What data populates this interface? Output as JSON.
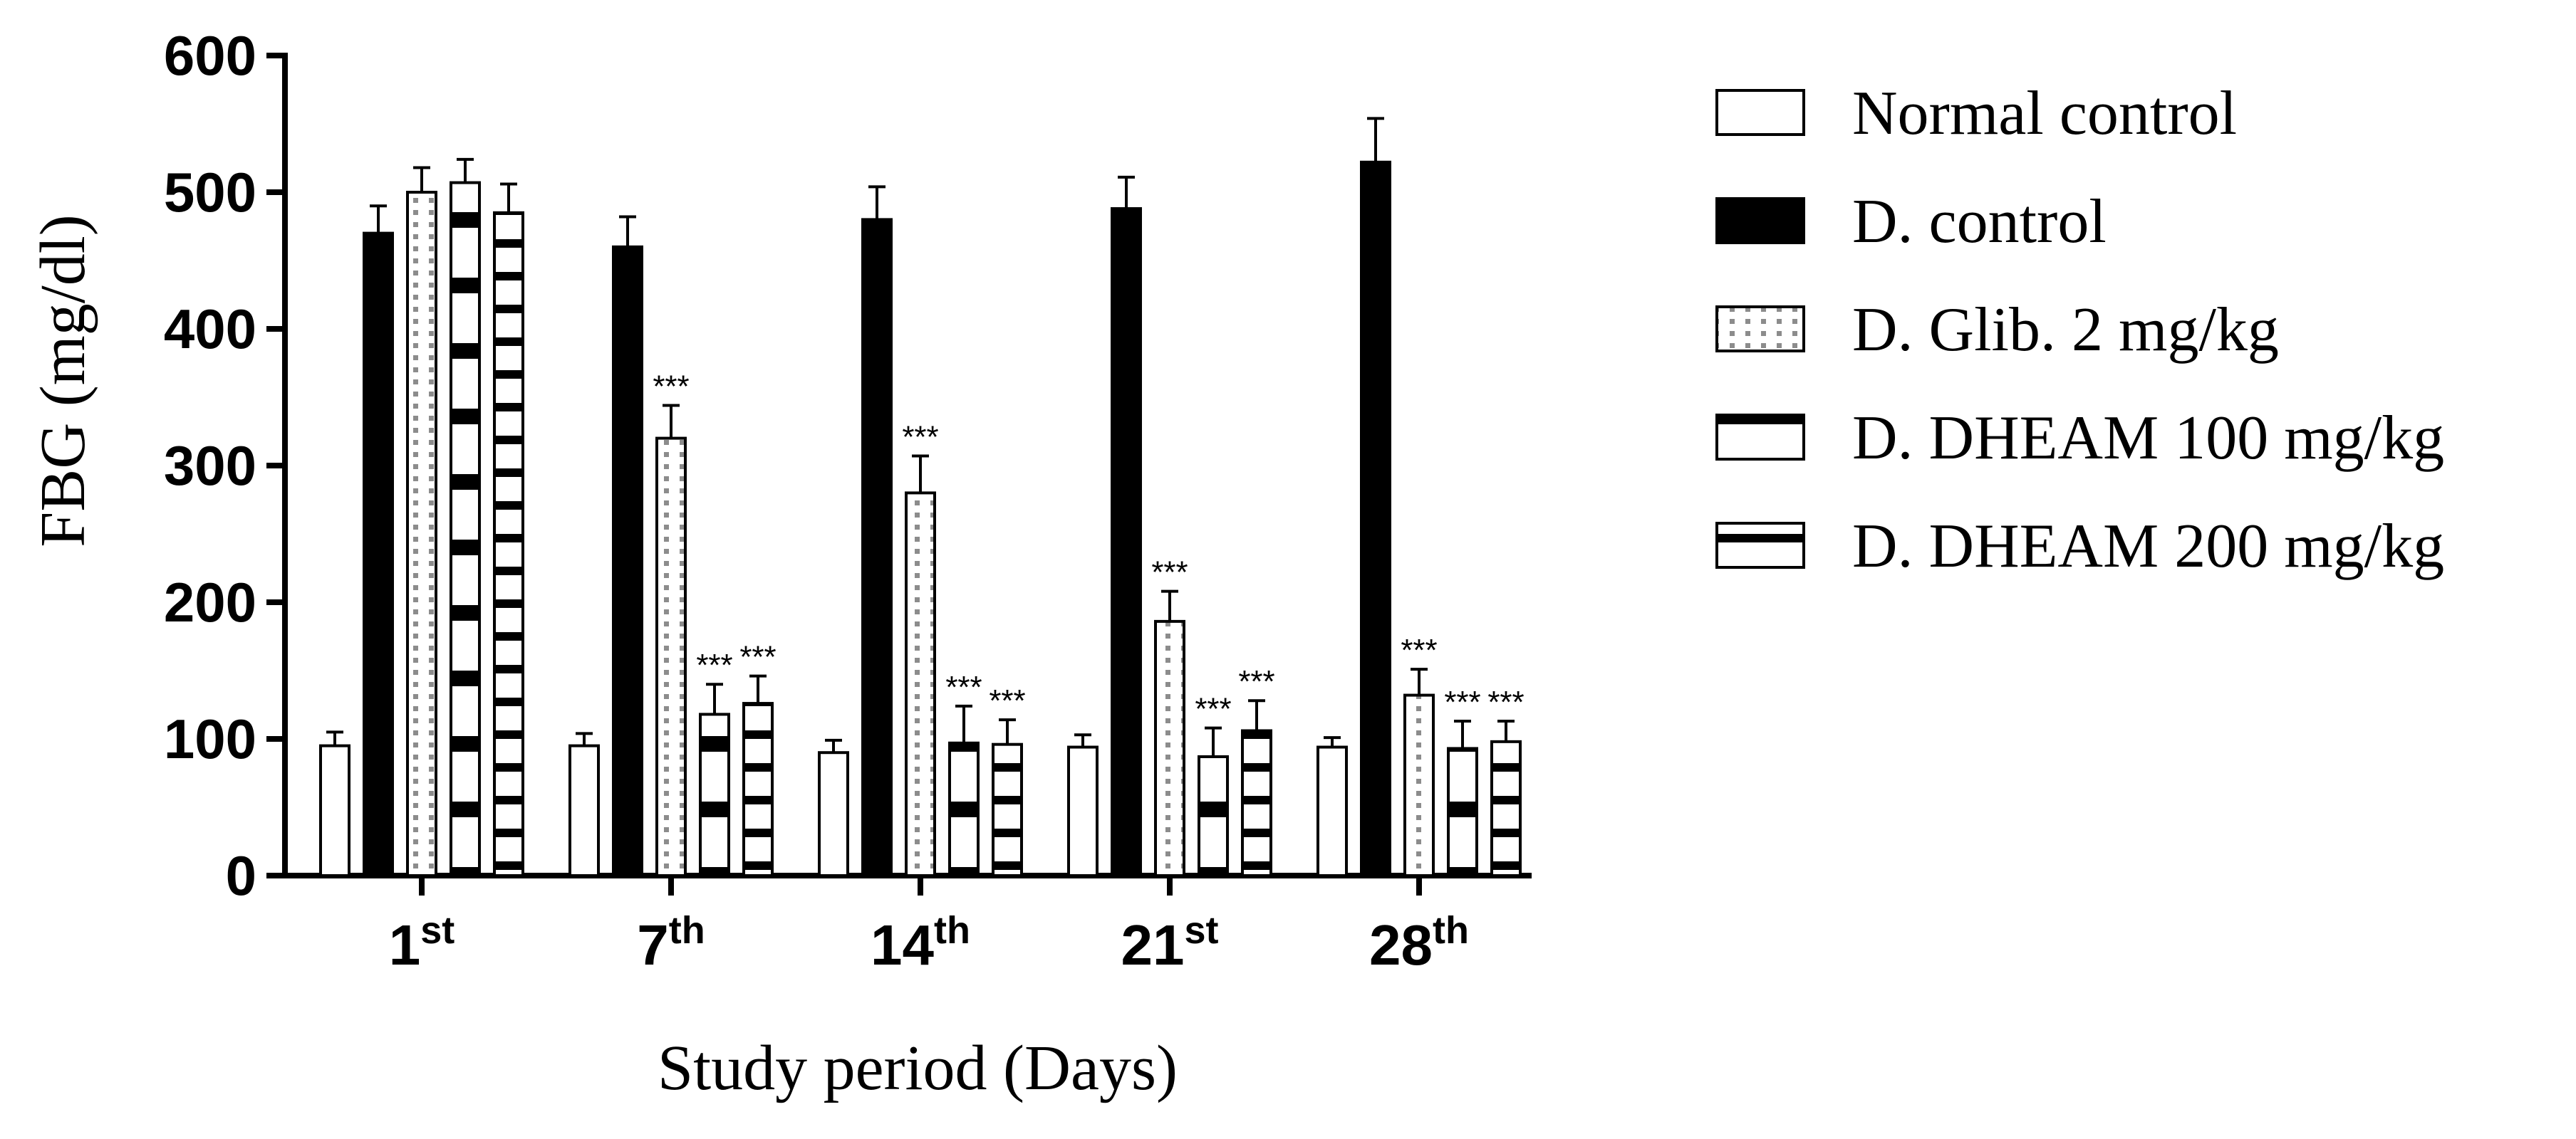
{
  "chart_data": {
    "type": "bar",
    "title": "",
    "xlabel": "Study period (Days)",
    "ylabel": "FBG (mg/dl)",
    "ylim": [
      0,
      600
    ],
    "yticks": [
      0,
      100,
      200,
      300,
      400,
      500,
      600
    ],
    "categories": [
      {
        "base": "1",
        "sup": "st"
      },
      {
        "base": "7",
        "sup": "th"
      },
      {
        "base": "14",
        "sup": "th"
      },
      {
        "base": "21",
        "sup": "st"
      },
      {
        "base": "28",
        "sup": "th"
      }
    ],
    "series": [
      {
        "name": "Normal control",
        "pattern": "plain",
        "values": [
          95,
          95,
          90,
          94,
          94
        ],
        "errors": [
          10,
          9,
          9,
          9,
          7
        ],
        "significance": [
          "",
          "",
          "",
          "",
          ""
        ]
      },
      {
        "name": "D. control",
        "pattern": "solid",
        "values": [
          470,
          460,
          480,
          488,
          522
        ],
        "errors": [
          20,
          22,
          24,
          23,
          32
        ],
        "significance": [
          "",
          "",
          "",
          "",
          ""
        ]
      },
      {
        "name": "D. Glib. 2 mg/kg",
        "pattern": "dots",
        "values": [
          500,
          320,
          280,
          186,
          132
        ],
        "errors": [
          18,
          24,
          27,
          22,
          19
        ],
        "significance": [
          "",
          "***",
          "***",
          "***",
          "***"
        ]
      },
      {
        "name": "D. DHEAM 100 mg/kg",
        "pattern": "blocks",
        "values": [
          507,
          118,
          97,
          87,
          93
        ],
        "errors": [
          17,
          22,
          27,
          21,
          20
        ],
        "significance": [
          "",
          "***",
          "***",
          "***",
          "***"
        ]
      },
      {
        "name": "D. DHEAM  200 mg/kg",
        "pattern": "stripes",
        "values": [
          485,
          126,
          96,
          106,
          98
        ],
        "errors": [
          21,
          20,
          18,
          22,
          15
        ],
        "significance": [
          "",
          "***",
          "***",
          "***",
          "***"
        ]
      }
    ],
    "legend": "right",
    "grid": false
  }
}
